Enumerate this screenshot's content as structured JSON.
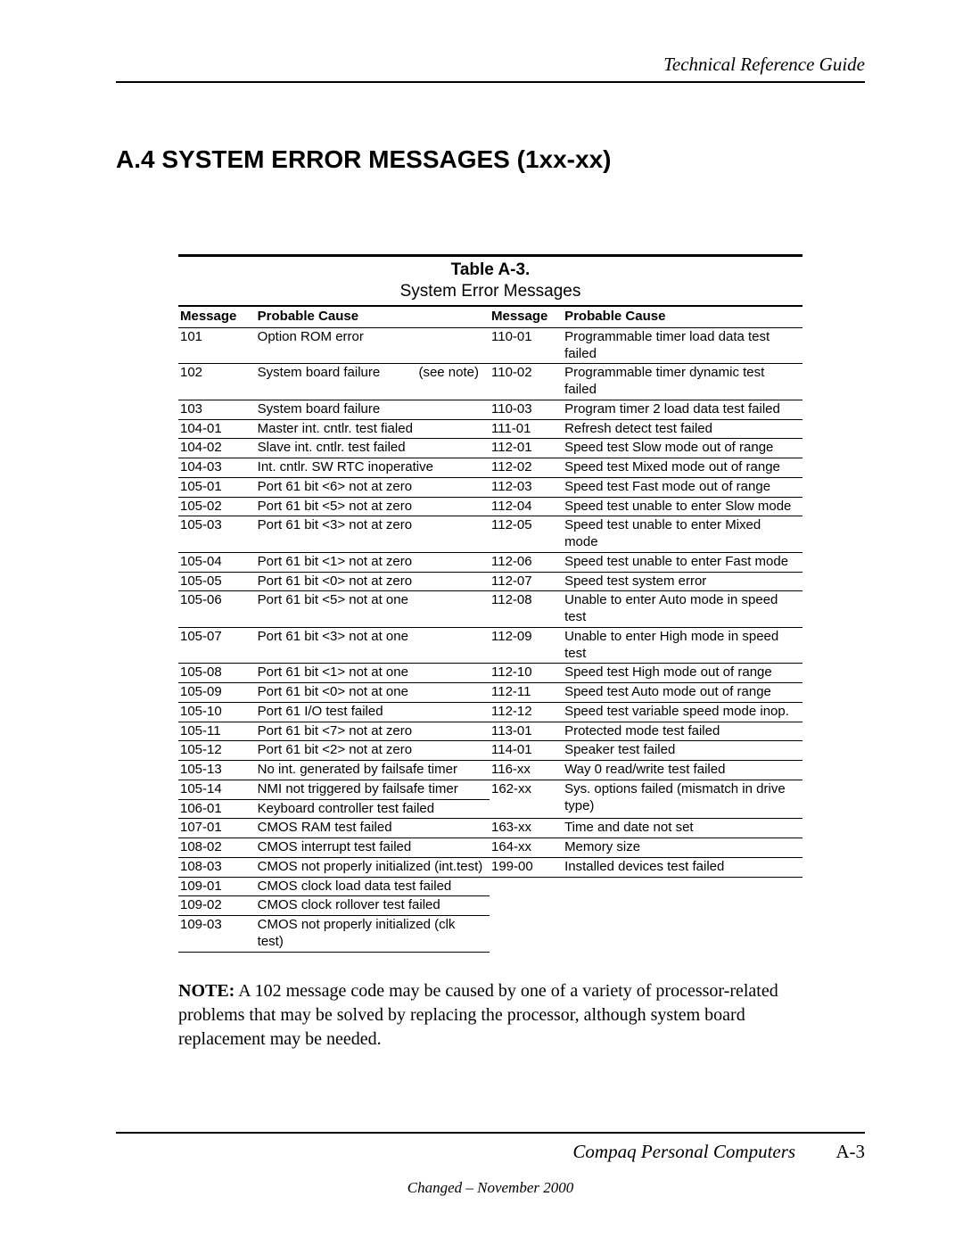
{
  "header": {
    "right": "Technical Reference Guide"
  },
  "section": {
    "title": "A.4   SYSTEM ERROR MESSAGES (1xx-xx)"
  },
  "table": {
    "title": "Table A-3.",
    "caption": "System Error Messages",
    "headers": {
      "msg": "Message",
      "cause": "Probable Cause"
    },
    "left": [
      {
        "msg": "101",
        "cause": "Option ROM error"
      },
      {
        "msg": "102",
        "cause": "System board failure",
        "note": "(see note)"
      },
      {
        "msg": "103",
        "cause": "System board failure"
      },
      {
        "msg": "104-01",
        "cause": "Master int. cntlr. test fialed"
      },
      {
        "msg": "104-02",
        "cause": "Slave int. cntlr. test failed"
      },
      {
        "msg": "104-03",
        "cause": "Int. cntlr. SW RTC inoperative"
      },
      {
        "msg": "105-01",
        "cause": "Port 61 bit <6> not at zero"
      },
      {
        "msg": "105-02",
        "cause": "Port 61 bit <5> not at zero"
      },
      {
        "msg": "105-03",
        "cause": "Port 61 bit <3> not at zero"
      },
      {
        "msg": "105-04",
        "cause": "Port 61 bit <1> not at zero"
      },
      {
        "msg": "105-05",
        "cause": "Port 61 bit <0> not at zero"
      },
      {
        "msg": "105-06",
        "cause": "Port 61 bit <5> not at one"
      },
      {
        "msg": "105-07",
        "cause": "Port 61 bit <3> not at one"
      },
      {
        "msg": "105-08",
        "cause": "Port 61 bit <1> not at one"
      },
      {
        "msg": "105-09",
        "cause": "Port 61 bit <0> not at one"
      },
      {
        "msg": "105-10",
        "cause": "Port 61 I/O test failed"
      },
      {
        "msg": "105-11",
        "cause": "Port 61 bit <7> not at zero"
      },
      {
        "msg": "105-12",
        "cause": "Port 61 bit <2> not at zero"
      },
      {
        "msg": "105-13",
        "cause": "No int. generated by failsafe timer"
      },
      {
        "msg": "105-14",
        "cause": "NMI not triggered by failsafe timer"
      },
      {
        "msg": "106-01",
        "cause": "Keyboard controller test failed"
      },
      {
        "msg": "107-01",
        "cause": "CMOS RAM test failed"
      },
      {
        "msg": "108-02",
        "cause": "CMOS interrupt test failed"
      },
      {
        "msg": "108-03",
        "cause": "CMOS not properly initialized (int.test)"
      },
      {
        "msg": "109-01",
        "cause": "CMOS clock load data test failed"
      },
      {
        "msg": "109-02",
        "cause": "CMOS clock rollover test failed"
      },
      {
        "msg": "109-03",
        "cause": "CMOS not properly initialized (clk test)"
      }
    ],
    "right": [
      {
        "msg": "110-01",
        "cause": "Programmable timer load data test failed"
      },
      {
        "msg": "110-02",
        "cause": "Programmable timer dynamic test failed"
      },
      {
        "msg": "110-03",
        "cause": "Program timer 2 load data test failed"
      },
      {
        "msg": "111-01",
        "cause": "Refresh detect test failed"
      },
      {
        "msg": "112-01",
        "cause": "Speed test Slow mode out of range"
      },
      {
        "msg": "112-02",
        "cause": "Speed test Mixed mode out of range"
      },
      {
        "msg": "112-03",
        "cause": "Speed test Fast mode out of range"
      },
      {
        "msg": "112-04",
        "cause": "Speed test unable to enter Slow mode"
      },
      {
        "msg": "112-05",
        "cause": "Speed test unable to enter Mixed mode"
      },
      {
        "msg": "112-06",
        "cause": "Speed test unable to enter Fast mode"
      },
      {
        "msg": "112-07",
        "cause": "Speed test system error"
      },
      {
        "msg": "112-08",
        "cause": "Unable to enter Auto mode in speed test"
      },
      {
        "msg": "112-09",
        "cause": "Unable to enter High mode in speed test"
      },
      {
        "msg": "112-10",
        "cause": "Speed test High mode out of range"
      },
      {
        "msg": "112-11",
        "cause": "Speed test Auto mode out of range"
      },
      {
        "msg": "112-12",
        "cause": "Speed test variable speed mode inop."
      },
      {
        "msg": "113-01",
        "cause": "Protected mode test failed"
      },
      {
        "msg": "114-01",
        "cause": "Speaker test failed"
      },
      {
        "msg": "116-xx",
        "cause": "Way 0 read/write test failed"
      },
      {
        "msg": "162-xx",
        "cause": "Sys. options failed (mismatch in drive type)"
      },
      {
        "msg": "163-xx",
        "cause": "Time and date not set"
      },
      {
        "msg": "164-xx",
        "cause": "Memory size"
      },
      {
        "msg": "199-00",
        "cause": "Installed devices test failed"
      }
    ]
  },
  "note": {
    "label": "NOTE:",
    "text": "  A 102 message code may be caused by one of a variety of processor-related problems that may be solved by replacing the processor, although system board replacement may be needed."
  },
  "footer": {
    "left": "Compaq Personal Computers",
    "page": "A-3",
    "changed": "Changed – November 2000"
  }
}
